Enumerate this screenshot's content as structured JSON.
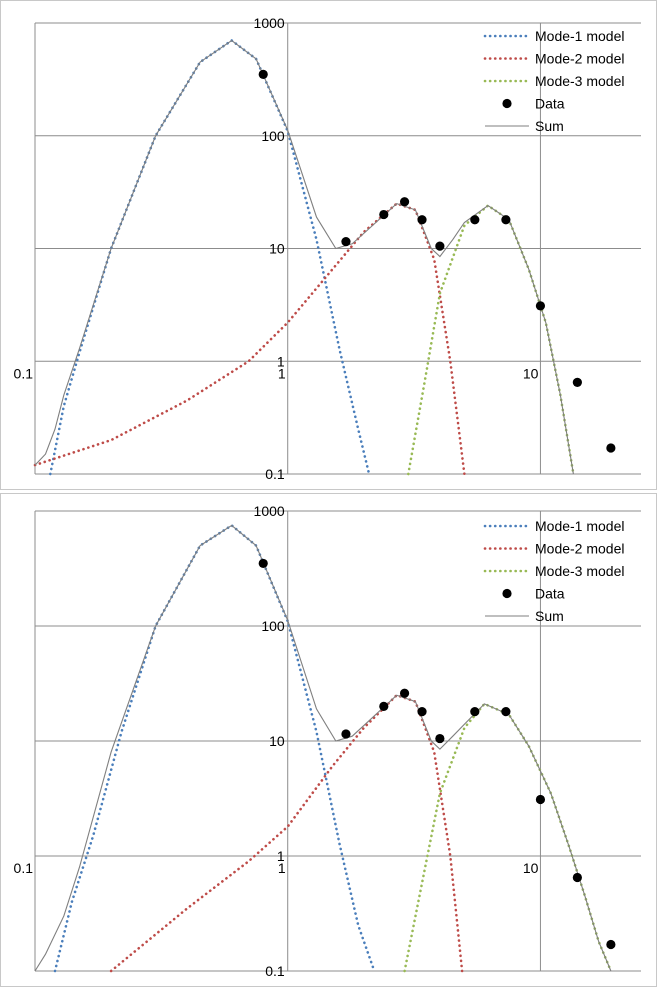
{
  "chart_data": [
    {
      "type": "line",
      "title": "",
      "xlabel": "",
      "ylabel": "",
      "x_scale": "log",
      "y_scale": "log",
      "xlim": [
        0.1,
        25
      ],
      "ylim": [
        0.1,
        1000
      ],
      "x_ticks": [
        "0.1",
        "1",
        "10"
      ],
      "y_ticks": [
        "0.1",
        "1",
        "10",
        "100",
        "1000"
      ],
      "grid": true,
      "legend_position": "top-right",
      "series": [
        {
          "name": "Mode-1 model",
          "style": "dotted",
          "color": "#4a7ebb",
          "x": [
            0.115,
            0.13,
            0.15,
            0.2,
            0.3,
            0.45,
            0.6,
            0.75,
            1.0,
            1.3,
            1.6,
            1.9,
            2.1
          ],
          "y": [
            0.1,
            0.4,
            1.2,
            10,
            100,
            450,
            700,
            480,
            110,
            12,
            1.3,
            0.25,
            0.1
          ]
        },
        {
          "name": "Mode-2 model",
          "style": "dotted",
          "color": "#be4b48",
          "x": [
            0.1,
            0.2,
            0.4,
            0.7,
            1.0,
            1.5,
            2.0,
            2.7,
            3.2,
            3.8,
            4.4,
            5.0
          ],
          "y": [
            0.12,
            0.2,
            0.45,
            1.0,
            2.2,
            6.5,
            14,
            25,
            22,
            8,
            1.0,
            0.1
          ]
        },
        {
          "name": "Mode-3 model",
          "style": "dotted",
          "color": "#98b954",
          "x": [
            3.0,
            3.5,
            4.0,
            5.0,
            6.2,
            7.5,
            9.0,
            10.5,
            12.0,
            13.5
          ],
          "y": [
            0.1,
            0.7,
            4.0,
            16,
            24,
            18,
            6.5,
            2.2,
            0.5,
            0.1
          ]
        },
        {
          "name": "Data",
          "style": "markers",
          "color": "#000000",
          "x": [
            0.8,
            1.7,
            2.4,
            2.9,
            3.4,
            4.0,
            5.5,
            7.3,
            10.0,
            14.0,
            19.0
          ],
          "y": [
            350,
            11.5,
            20,
            26,
            18,
            10.5,
            18,
            18,
            3.1,
            0.65,
            0.17
          ]
        },
        {
          "name": "Sum",
          "style": "solid",
          "color": "#7f7f7f",
          "x": [
            0.1,
            0.11,
            0.12,
            0.13,
            0.15,
            0.2,
            0.3,
            0.45,
            0.6,
            0.75,
            1.0,
            1.3,
            1.55,
            1.8,
            2.1,
            2.7,
            3.2,
            3.7,
            4.0,
            4.5,
            5.0,
            6.2,
            7.5,
            9.0,
            10.5,
            12.0,
            13.5
          ],
          "y": [
            0.12,
            0.15,
            0.25,
            0.5,
            1.3,
            10,
            100,
            450,
            700,
            480,
            112,
            19,
            10,
            11,
            15,
            25,
            22,
            10,
            8.5,
            12,
            17,
            24,
            18,
            6.5,
            2.2,
            0.5,
            0.1
          ]
        }
      ]
    },
    {
      "type": "line",
      "title": "",
      "xlabel": "",
      "ylabel": "",
      "x_scale": "log",
      "y_scale": "log",
      "xlim": [
        0.1,
        25
      ],
      "ylim": [
        0.1,
        1000
      ],
      "x_ticks": [
        "0.1",
        "1",
        "10"
      ],
      "y_ticks": [
        "0.1",
        "1",
        "10",
        "100",
        "1000"
      ],
      "grid": true,
      "legend_position": "top-right",
      "series": [
        {
          "name": "Mode-1 model",
          "style": "dotted",
          "color": "#4a7ebb",
          "x": [
            0.12,
            0.14,
            0.17,
            0.22,
            0.3,
            0.45,
            0.6,
            0.75,
            1.0,
            1.3,
            1.6,
            1.9,
            2.2
          ],
          "y": [
            0.1,
            0.4,
            1.5,
            12,
            100,
            500,
            750,
            500,
            110,
            12,
            1.3,
            0.25,
            0.1
          ]
        },
        {
          "name": "Mode-2 model",
          "style": "dotted",
          "color": "#be4b48",
          "x": [
            0.2,
            0.4,
            0.7,
            1.0,
            1.5,
            2.0,
            2.7,
            3.2,
            3.8,
            4.4,
            4.9
          ],
          "y": [
            0.1,
            0.35,
            0.9,
            1.8,
            6.0,
            13,
            25,
            22,
            8,
            1.0,
            0.1
          ]
        },
        {
          "name": "Mode-3 model",
          "style": "dotted",
          "color": "#98b954",
          "x": [
            2.9,
            3.5,
            4.0,
            5.0,
            6.0,
            7.5,
            9.0,
            11.0,
            13.0,
            15.0,
            17.0,
            19.0
          ],
          "y": [
            0.1,
            0.8,
            3.5,
            13,
            21,
            17,
            9.0,
            3.5,
            1.2,
            0.45,
            0.18,
            0.1
          ]
        },
        {
          "name": "Data",
          "style": "markers",
          "color": "#000000",
          "x": [
            0.8,
            1.7,
            2.4,
            2.9,
            3.4,
            4.0,
            5.5,
            7.3,
            10.0,
            14.0,
            19.0
          ],
          "y": [
            350,
            11.5,
            20,
            26,
            18,
            10.5,
            18,
            18,
            3.1,
            0.65,
            0.17
          ]
        },
        {
          "name": "Sum",
          "style": "solid",
          "color": "#7f7f7f",
          "x": [
            0.1,
            0.11,
            0.13,
            0.15,
            0.2,
            0.3,
            0.45,
            0.6,
            0.75,
            1.0,
            1.3,
            1.55,
            1.8,
            2.1,
            2.7,
            3.2,
            3.7,
            4.0,
            4.5,
            5.0,
            6.0,
            7.5,
            9.0,
            11.0,
            13.0,
            15.0,
            17.0,
            19.0
          ],
          "y": [
            0.1,
            0.14,
            0.3,
            0.8,
            8,
            100,
            500,
            750,
            500,
            112,
            19,
            10,
            11,
            15,
            25,
            22,
            10,
            8.5,
            11,
            14,
            21,
            17,
            9.0,
            3.5,
            1.2,
            0.45,
            0.18,
            0.1
          ]
        }
      ]
    }
  ]
}
